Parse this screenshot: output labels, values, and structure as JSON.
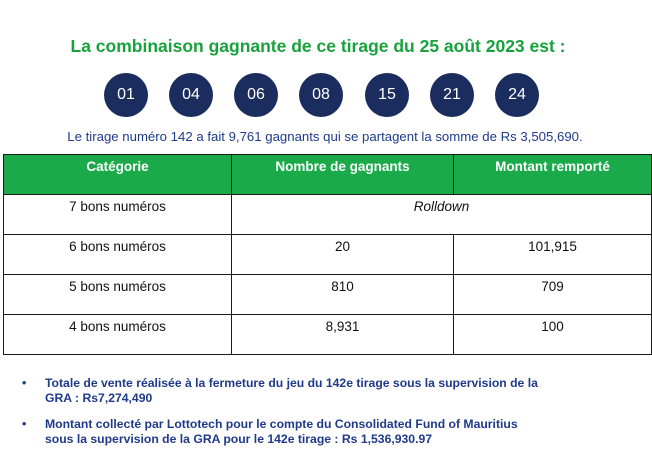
{
  "headline": "La combinaison gagnante de ce tirage du 25 août 2023 est :",
  "winning_numbers": [
    "01",
    "04",
    "06",
    "08",
    "15",
    "21",
    "24"
  ],
  "summary": "Le tirage numéro 142 a fait 9,761 gagnants qui se partagent la somme de Rs 3,505,690.",
  "table": {
    "headers": [
      "Catégorie",
      "Nombre de gagnants",
      "Montant remporté"
    ],
    "rows": [
      {
        "category": "7 bons numéros",
        "merged": "Rolldown"
      },
      {
        "category": "6 bons numéros",
        "winners": "20",
        "amount": "101,915"
      },
      {
        "category": "5 bons numéros",
        "winners": "810",
        "amount": "709"
      },
      {
        "category": "4 bons numéros",
        "winners": "8,931",
        "amount": "100"
      }
    ]
  },
  "notes": [
    {
      "line1": "Totale de vente réalisée à la fermeture du jeu du 142e tirage sous la supervision de la",
      "line2": "GRA : Rs7,274,490"
    },
    {
      "line1": "Montant collecté par Lottotech pour le compte du Consolidated Fund of Mauritius",
      "line2": "sous la supervision de la GRA pour le 142e tirage : Rs 1,536,930.97"
    }
  ],
  "bullet_glyph": "•",
  "colors": {
    "headline": "#18a23c",
    "ball": "#1b2d5e",
    "table_header": "#1aaa4a",
    "body_text": "#1f3a8a"
  }
}
